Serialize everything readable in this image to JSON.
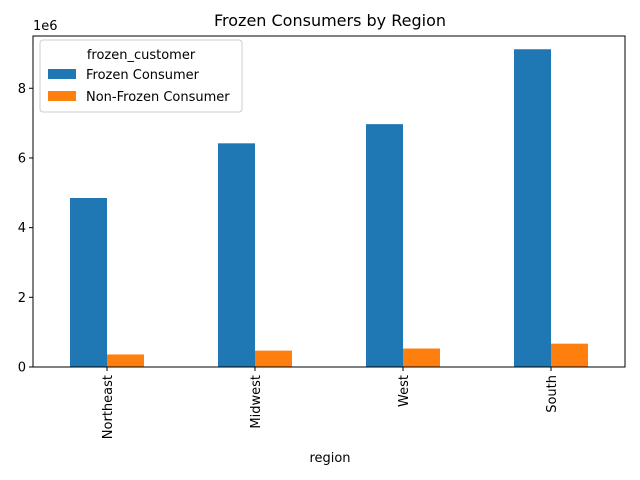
{
  "chart_data": {
    "type": "bar",
    "title": "Frozen Consumers by Region",
    "xlabel": "region",
    "ylabel": "",
    "y_multiplier": "1e6",
    "categories": [
      "Northeast",
      "Midwest",
      "West",
      "South"
    ],
    "yticks": [
      "0",
      "2",
      "4",
      "6",
      "8"
    ],
    "ylim": [
      0,
      9.5
    ],
    "legend": {
      "title": "frozen_customer",
      "placement": "top-left"
    },
    "series": [
      {
        "name": "Frozen Consumer",
        "color": "#1f77b4",
        "values": [
          4.85,
          6.42,
          6.97,
          9.12
        ]
      },
      {
        "name": "Non-Frozen Consumer",
        "color": "#ff7f0e",
        "values": [
          0.36,
          0.47,
          0.53,
          0.67
        ]
      }
    ]
  }
}
